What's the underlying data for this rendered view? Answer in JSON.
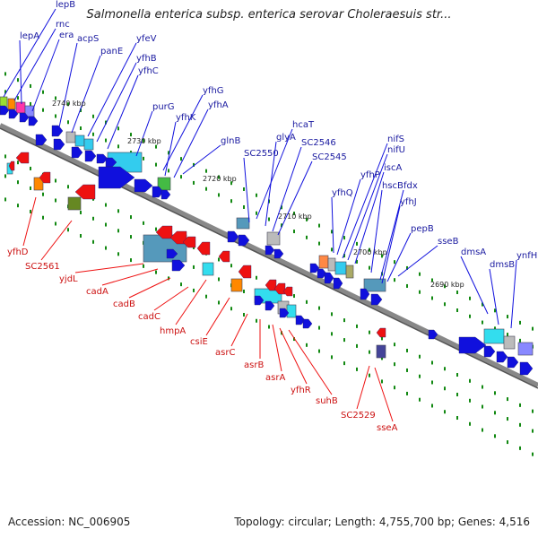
{
  "title": "Salmonella enterica subsp. enterica serovar Choleraesuis str...",
  "footer": {
    "accession": "Accession: NC_006905",
    "summary": "Topology: circular; Length: 4,755,700 bp; Genes: 4,516"
  },
  "colors": {
    "forward": "#1010dd",
    "reverse": "#ee1111",
    "axis": "#888888",
    "tick": "#118811",
    "label_forward": "#1a1aa0",
    "label_reverse": "#cc1111"
  },
  "scale_labels": [
    "2740 kbp",
    "2730 kbp",
    "2720 kbp",
    "2710 kbp",
    "2700 kbp",
    "2690 kbp"
  ],
  "genes_top": [
    "lepB",
    "rnc",
    "lepA",
    "era",
    "acpS",
    "panE",
    "yfeV",
    "yfhB",
    "yfhC",
    "purG",
    "yfhG",
    "yfhK",
    "yfhA",
    "glnB",
    "hcaT",
    "glyA",
    "SC2546",
    "SC2550",
    "SC2545",
    "nifS",
    "nifU",
    "yfhP",
    "iscA",
    "hscB",
    "fdx",
    "yfhQ",
    "yfhJ",
    "pepB",
    "sseB",
    "dmsA",
    "dmsB",
    "ynfH"
  ],
  "genes_bottom": [
    "yfhD",
    "SC2561",
    "yjdL",
    "cadA",
    "cadB",
    "cadC",
    "hmpA",
    "csiE",
    "asrC",
    "asrB",
    "asrA",
    "yfhR",
    "suhB",
    "SC2529",
    "sseA"
  ]
}
